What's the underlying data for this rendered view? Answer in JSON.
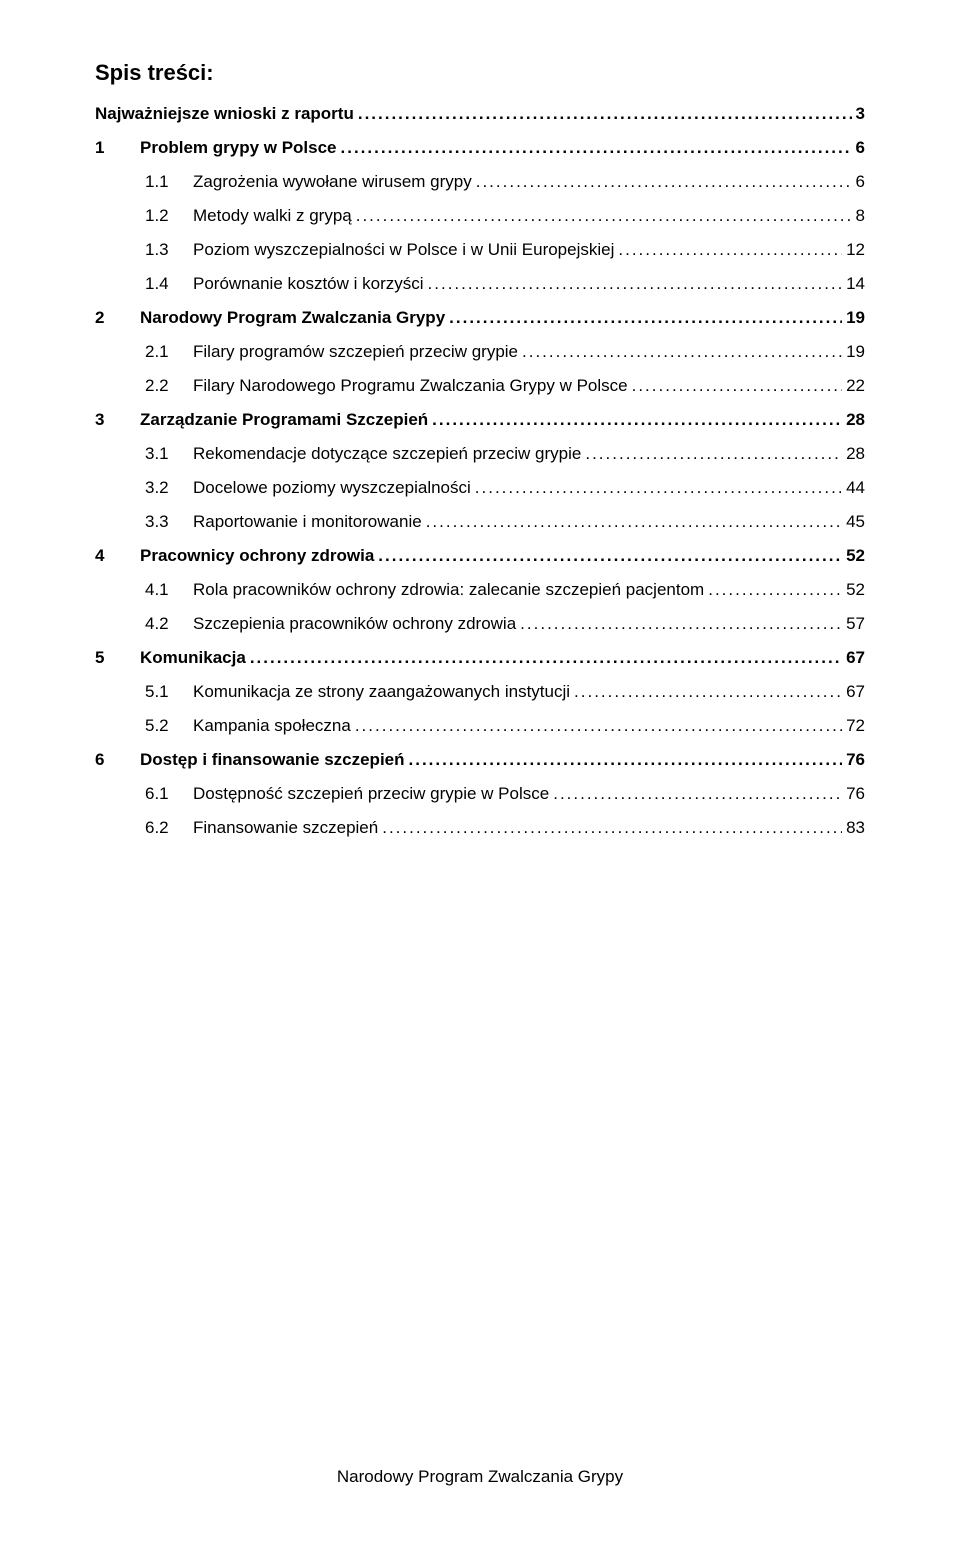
{
  "heading": "Spis treści:",
  "footer": "Narodowy Program Zwalczania Grypy",
  "entries": [
    {
      "level": 0,
      "num": "",
      "text": "Najważniejsze wnioski z raportu",
      "page": "3"
    },
    {
      "level": 1,
      "num": "1",
      "text": "Problem grypy w Polsce",
      "page": "6"
    },
    {
      "level": 2,
      "num": "1.1",
      "text": "Zagrożenia wywołane wirusem grypy",
      "page": "6"
    },
    {
      "level": 2,
      "num": "1.2",
      "text": "Metody walki z grypą",
      "page": "8"
    },
    {
      "level": 2,
      "num": "1.3",
      "text": "Poziom wyszczepialności w Polsce i w Unii Europejskiej",
      "page": "12"
    },
    {
      "level": 2,
      "num": "1.4",
      "text": "Porównanie kosztów i korzyści",
      "page": "14"
    },
    {
      "level": 1,
      "num": "2",
      "text": "Narodowy Program Zwalczania Grypy",
      "page": "19"
    },
    {
      "level": 2,
      "num": "2.1",
      "text": "Filary programów szczepień przeciw grypie",
      "page": "19"
    },
    {
      "level": 2,
      "num": "2.2",
      "text": "Filary Narodowego Programu Zwalczania Grypy w Polsce",
      "page": "22"
    },
    {
      "level": 1,
      "num": "3",
      "text": "Zarządzanie Programami Szczepień",
      "page": "28"
    },
    {
      "level": 2,
      "num": "3.1",
      "text": "Rekomendacje dotyczące szczepień przeciw grypie",
      "page": "28"
    },
    {
      "level": 2,
      "num": "3.2",
      "text": "Docelowe poziomy wyszczepialności",
      "page": "44"
    },
    {
      "level": 2,
      "num": "3.3",
      "text": "Raportowanie i monitorowanie",
      "page": "45"
    },
    {
      "level": 1,
      "num": "4",
      "text": "Pracownicy ochrony zdrowia",
      "page": "52"
    },
    {
      "level": 2,
      "num": "4.1",
      "text": "Rola pracowników ochrony zdrowia: zalecanie szczepień pacjentom",
      "page": "52"
    },
    {
      "level": 2,
      "num": "4.2",
      "text": "Szczepienia pracowników ochrony zdrowia",
      "page": "57"
    },
    {
      "level": 1,
      "num": "5",
      "text": "Komunikacja",
      "page": "67"
    },
    {
      "level": 2,
      "num": "5.1",
      "text": "Komunikacja ze strony zaangażowanych instytucji",
      "page": "67"
    },
    {
      "level": 2,
      "num": "5.2",
      "text": "Kampania społeczna",
      "page": "72"
    },
    {
      "level": 1,
      "num": "6",
      "text": "Dostęp i finansowanie szczepień",
      "page": "76"
    },
    {
      "level": 2,
      "num": "6.1",
      "text": "Dostępność szczepień przeciw grypie w Polsce",
      "page": "76"
    },
    {
      "level": 2,
      "num": "6.2",
      "text": "Finansowanie szczepień",
      "page": "83"
    }
  ]
}
